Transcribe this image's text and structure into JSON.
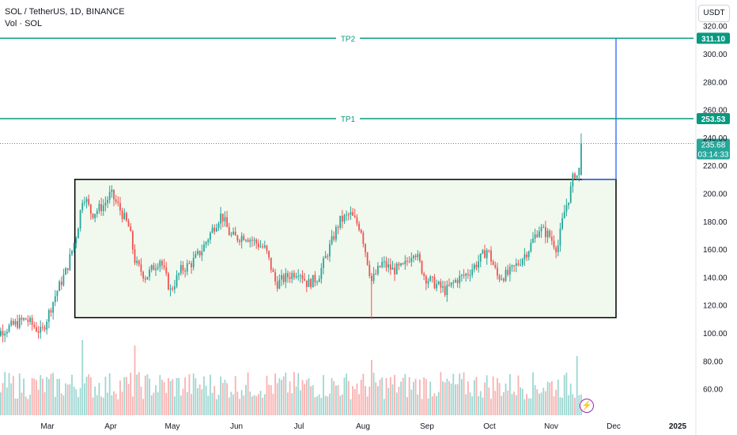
{
  "header": {
    "title": "SOL / TetherUS, 1D, BINANCE",
    "volume_label": "Vol · SOL"
  },
  "currency_button": "USDT",
  "colors": {
    "up": "#26a69a",
    "down": "#ef5350",
    "target_line": "#089981",
    "projection": "#2962ff",
    "range_box_fill": "#f1f8ee",
    "range_box_border": "#000000"
  },
  "targets": [
    {
      "label": "TP2",
      "price": 311.1,
      "tag": "311.10"
    },
    {
      "label": "TP1",
      "price": 253.53,
      "tag": "253.53"
    }
  ],
  "last_price": {
    "value": "235.68",
    "countdown": "03:14:33",
    "price": 235.68
  },
  "chart_data": {
    "type": "candlestick",
    "symbol": "SOL / TetherUS",
    "interval": "1D",
    "exchange": "BINANCE",
    "y_ticks": [
      "320.00",
      "300.00",
      "280.00",
      "260.00",
      "240.00",
      "220.00",
      "200.00",
      "180.00",
      "160.00",
      "140.00",
      "120.00",
      "100.00",
      "80.00",
      "60.00"
    ],
    "y_tick_values": [
      320,
      300,
      280,
      260,
      240,
      220,
      200,
      180,
      160,
      140,
      120,
      100,
      80,
      60
    ],
    "x_labels": [
      "Mar",
      "Apr",
      "May",
      "Jun",
      "Jul",
      "Aug",
      "Sep",
      "Oct",
      "Nov",
      "Dec",
      "2025"
    ],
    "range_box": {
      "start": "Mar 14",
      "end": "Dec 1",
      "low": 111,
      "high": 210
    },
    "projection": {
      "from": 210,
      "to": 311.1
    },
    "close_path": [
      [
        "Feb 01",
        96
      ],
      [
        "Feb 10",
        103
      ],
      [
        "Feb 20",
        110
      ],
      [
        "Feb 28",
        100
      ],
      [
        "Mar 05",
        128
      ],
      [
        "Mar 10",
        145
      ],
      [
        "Mar 15",
        172
      ],
      [
        "Mar 18",
        200
      ],
      [
        "Mar 22",
        185
      ],
      [
        "Mar 28",
        192
      ],
      [
        "Apr 01",
        200
      ],
      [
        "Apr 05",
        190
      ],
      [
        "Apr 10",
        175
      ],
      [
        "Apr 13",
        150
      ],
      [
        "Apr 18",
        140
      ],
      [
        "Apr 25",
        153
      ],
      [
        "Apr 30",
        130
      ],
      [
        "May 05",
        145
      ],
      [
        "May 10",
        150
      ],
      [
        "May 15",
        160
      ],
      [
        "May 20",
        175
      ],
      [
        "May 24",
        185
      ],
      [
        "May 28",
        170
      ],
      [
        "Jun 01",
        168
      ],
      [
        "Jun 05",
        170
      ],
      [
        "Jun 10",
        165
      ],
      [
        "Jun 15",
        160
      ],
      [
        "Jun 20",
        135
      ],
      [
        "Jun 25",
        140
      ],
      [
        "Jul 01",
        145
      ],
      [
        "Jul 05",
        135
      ],
      [
        "Jul 10",
        140
      ],
      [
        "Jul 15",
        160
      ],
      [
        "Jul 20",
        180
      ],
      [
        "Jul 25",
        185
      ],
      [
        "Jul 30",
        175
      ],
      [
        "Aug 05",
        137
      ],
      [
        "Aug 10",
        150
      ],
      [
        "Aug 15",
        145
      ],
      [
        "Aug 20",
        147
      ],
      [
        "Aug 25",
        160
      ],
      [
        "Aug 30",
        140
      ],
      [
        "Sep 05",
        135
      ],
      [
        "Sep 10",
        130
      ],
      [
        "Sep 15",
        138
      ],
      [
        "Sep 20",
        142
      ],
      [
        "Sep 25",
        150
      ],
      [
        "Sep 30",
        160
      ],
      [
        "Oct 05",
        140
      ],
      [
        "Oct 10",
        142
      ],
      [
        "Oct 15",
        150
      ],
      [
        "Oct 20",
        160
      ],
      [
        "Oct 25",
        175
      ],
      [
        "Oct 30",
        170
      ],
      [
        "Nov 04",
        160
      ],
      [
        "Nov 07",
        185
      ],
      [
        "Nov 10",
        200
      ],
      [
        "Nov 12",
        215
      ],
      [
        "Nov 14",
        212
      ],
      [
        "Nov 16",
        235.68
      ]
    ],
    "volume": {
      "spikes": [
        {
          "date": "Mar 18",
          "value": 95
        },
        {
          "date": "Apr 13",
          "value": 88
        },
        {
          "date": "Aug 05",
          "value": 70
        },
        {
          "date": "Nov 13",
          "value": 75
        }
      ]
    }
  }
}
